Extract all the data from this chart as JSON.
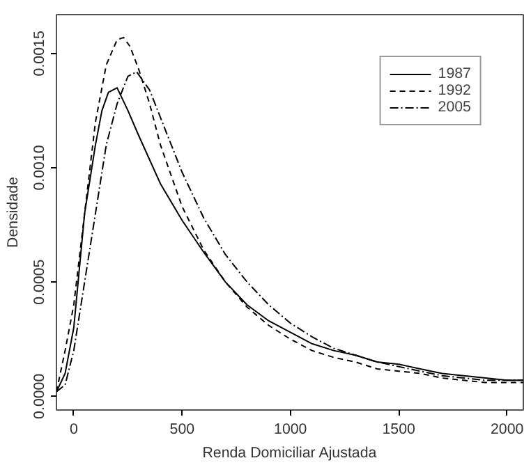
{
  "chart_data": {
    "type": "line",
    "xlabel": "Renda Domiciliar Ajustada",
    "ylabel": "Densidade",
    "xlim": [
      -80,
      2075
    ],
    "ylim": [
      -6e-05,
      0.00167
    ],
    "xticks": [
      0,
      500,
      1000,
      1500,
      2000
    ],
    "yticks": [
      {
        "value": 0,
        "label": "0.0000"
      },
      {
        "value": 0.0005,
        "label": "0.0005"
      },
      {
        "value": 0.001,
        "label": "0.0010"
      },
      {
        "value": 0.0015,
        "label": "0.0015"
      }
    ],
    "grid": false,
    "legend": "top right",
    "marker": "none",
    "series": [
      {
        "name": "1987",
        "color": "#000000",
        "line_style": "solid",
        "x": [
          -80,
          -40,
          0,
          50,
          100,
          130,
          160,
          200,
          250,
          300,
          400,
          500,
          600,
          700,
          800,
          900,
          1000,
          1100,
          1200,
          1300,
          1400,
          1500,
          1550,
          1600,
          1700,
          1800,
          1900,
          2000,
          2075
        ],
        "values": [
          2e-05,
          0.0001,
          0.0003,
          0.0008,
          0.0011,
          0.00125,
          0.00133,
          0.00135,
          0.00125,
          0.00114,
          0.00093,
          0.00077,
          0.00063,
          0.0005,
          0.0004,
          0.00033,
          0.00028,
          0.00023,
          0.0002,
          0.00018,
          0.00015,
          0.00014,
          0.00013,
          0.00012,
          0.0001,
          9e-05,
          8e-05,
          7e-05,
          7e-05
        ]
      },
      {
        "name": "1992",
        "color": "#000000",
        "line_style": "dashed",
        "x": [
          -80,
          -40,
          0,
          50,
          100,
          150,
          200,
          230,
          260,
          300,
          350,
          400,
          500,
          600,
          700,
          800,
          900,
          1000,
          1100,
          1200,
          1300,
          1400,
          1500,
          1600,
          1700,
          1800,
          1900,
          2000,
          2075
        ],
        "values": [
          2e-05,
          0.0002,
          0.0004,
          0.0008,
          0.0012,
          0.00145,
          0.00156,
          0.00157,
          0.00153,
          0.00143,
          0.00128,
          0.0011,
          0.00083,
          0.00064,
          0.0005,
          0.00039,
          0.00031,
          0.00025,
          0.0002,
          0.00017,
          0.00015,
          0.00012,
          0.00011,
          0.0001,
          8e-05,
          7e-05,
          6e-05,
          6e-05,
          6e-05
        ]
      },
      {
        "name": "2005",
        "color": "#000000",
        "line_style": "dashdot",
        "x": [
          -80,
          -40,
          0,
          50,
          100,
          150,
          200,
          250,
          290,
          350,
          400,
          500,
          600,
          700,
          800,
          900,
          1000,
          1100,
          1200,
          1300,
          1400,
          1500,
          1600,
          1700,
          1800,
          1900,
          2000,
          2075
        ],
        "values": [
          2e-05,
          5e-05,
          0.0002,
          0.0005,
          0.0008,
          0.0011,
          0.00128,
          0.0014,
          0.00142,
          0.00134,
          0.00122,
          0.00098,
          0.00078,
          0.00062,
          0.0005,
          0.0004,
          0.00032,
          0.00026,
          0.00021,
          0.00018,
          0.00015,
          0.00013,
          0.00011,
          9e-05,
          8e-05,
          7e-05,
          7e-05,
          7e-05
        ]
      }
    ]
  }
}
